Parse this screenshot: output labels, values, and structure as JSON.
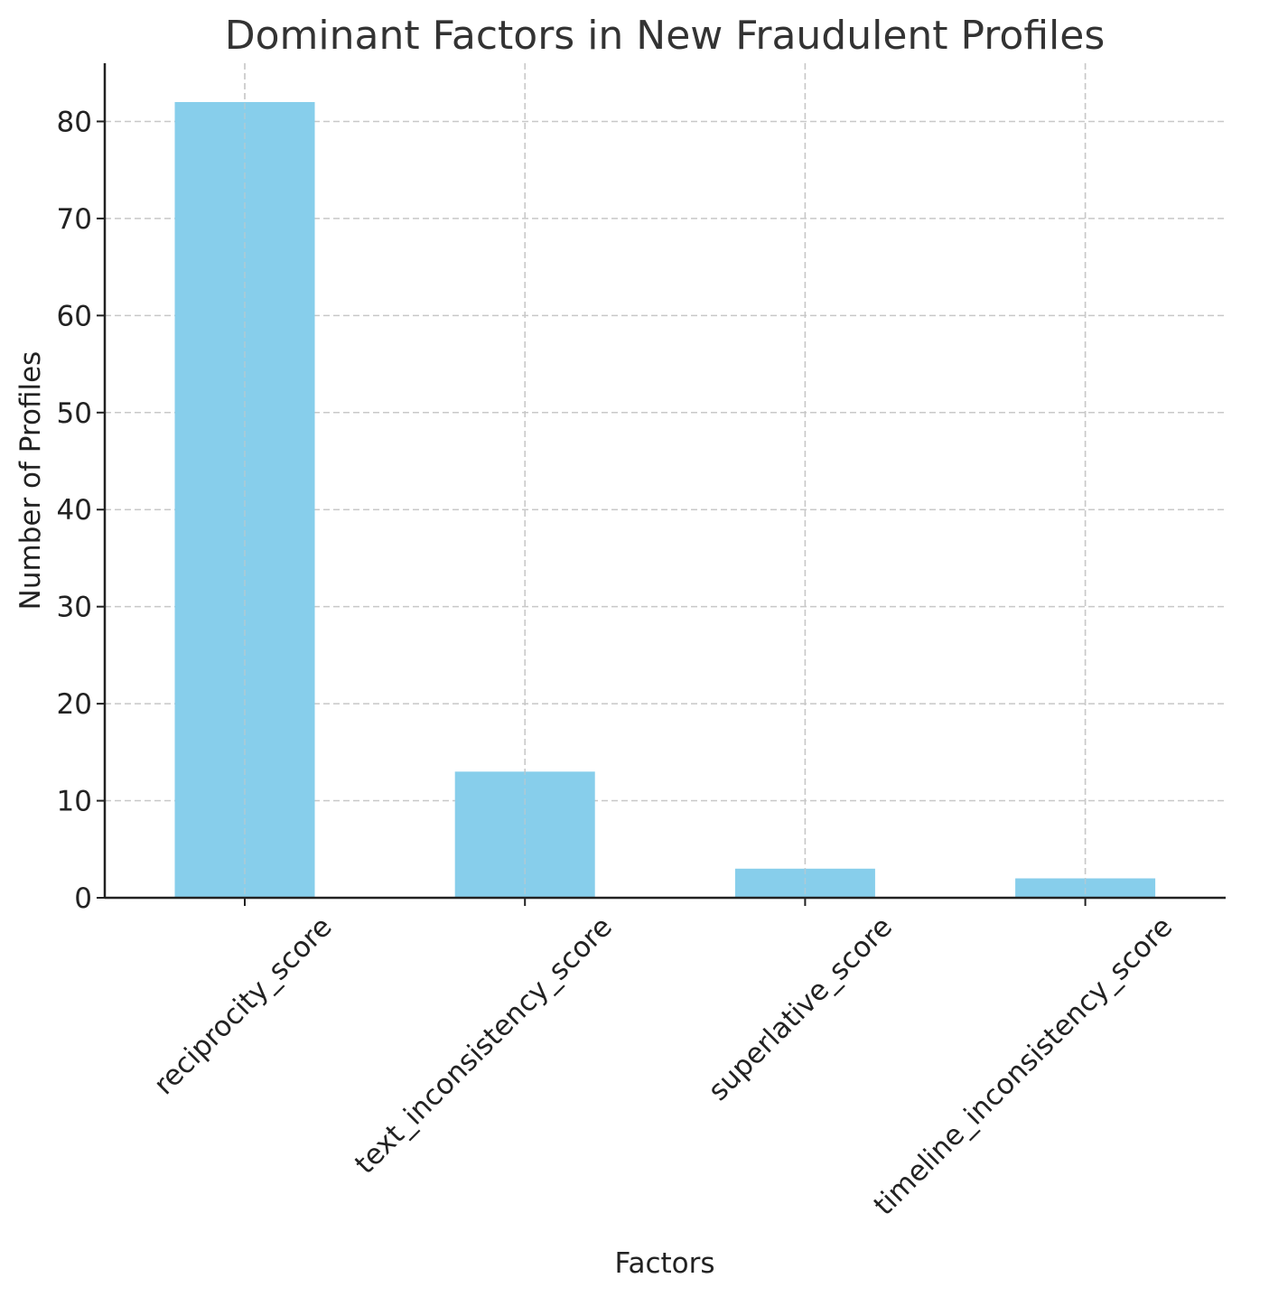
{
  "chart_data": {
    "type": "bar",
    "title": "Dominant Factors in New Fraudulent Profiles",
    "xlabel": "Factors",
    "ylabel": "Number of Profiles",
    "categories": [
      "reciprocity_score",
      "text_inconsistency_score",
      "superlative_score",
      "timeline_inconsistency_score"
    ],
    "values": [
      82,
      13,
      3,
      2
    ],
    "ylim": [
      0,
      86
    ],
    "yticks": [
      0,
      10,
      20,
      30,
      40,
      50,
      60,
      70,
      80
    ],
    "grid": true,
    "bar_color": "#87ceeb"
  }
}
